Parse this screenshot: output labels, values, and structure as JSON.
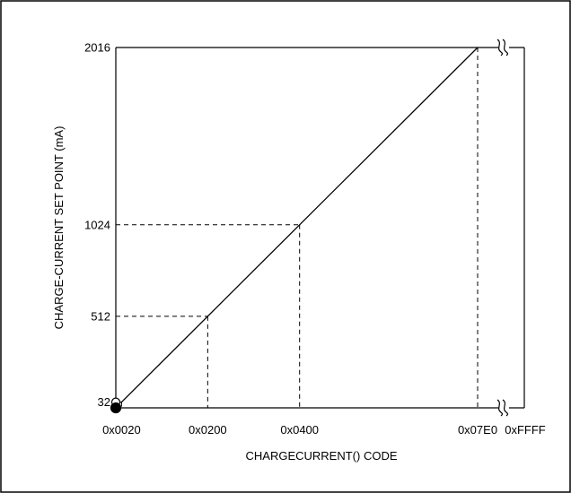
{
  "chart_data": {
    "type": "line",
    "title": "",
    "xlabel": "CHARGECURRENT() CODE",
    "ylabel": "CHARGE-CURRENT SET POINT (mA)",
    "x_tick_labels": [
      "0x0020",
      "0x0200",
      "0x0400",
      "0x07E0",
      "0xFFFF"
    ],
    "y_tick_labels": [
      "32",
      "512",
      "1024",
      "2016"
    ],
    "xlim": [
      0,
      2016
    ],
    "ylim": [
      0,
      2016
    ],
    "axis_break_symbol": "≈",
    "series": [
      {
        "points": [
          {
            "x": 0,
            "y": 32
          },
          {
            "x": 32,
            "y": 32
          },
          {
            "x": 512,
            "y": 512
          },
          {
            "x": 1024,
            "y": 1024
          },
          {
            "x": 2016,
            "y": 2016
          }
        ]
      }
    ],
    "reference_lines": [
      {
        "x": 32,
        "y": 32
      },
      {
        "x": 512,
        "y": 512
      },
      {
        "x": 1024,
        "y": 1024
      },
      {
        "x": 2016,
        "y": 2016
      }
    ],
    "markers": [
      {
        "kind": "open-circle",
        "x": 0,
        "y": 32
      },
      {
        "kind": "filled-circle",
        "x": 0,
        "y": 0
      }
    ],
    "grid": false,
    "legend": "none"
  }
}
